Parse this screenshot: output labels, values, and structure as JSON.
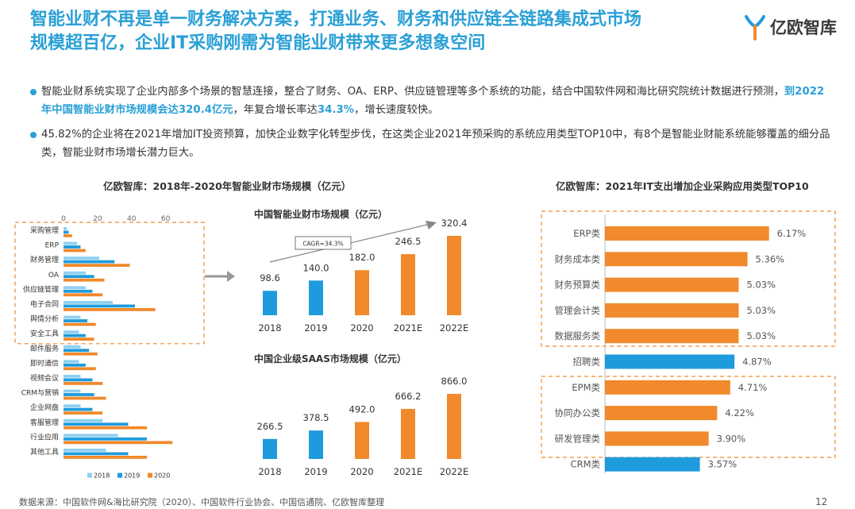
{
  "title": {
    "line1": "智能业财不再是单一财务解决方案，打通业务、财务和供应链全链路集成式市场",
    "line2": "规模超百亿，企业IT采购刚需为智能业财带来更多想象空间"
  },
  "logo": {
    "text": "亿欧智库"
  },
  "bullets": [
    {
      "text_before": "智能业财系统实现了企业内部多个场景的智慧连接，整合了财务、OA、ERP、供应链管理等多个系统的功能，结合中国软件网和海比研究院统计数据进行预测，",
      "highlight1": "到2022年中国智能业财市场规模会达320.4亿元",
      "text_mid": "，年复合增长率达",
      "highlight2": "34.3%",
      "text_after": "，增长速度较快。"
    },
    {
      "text": "45.82%的企业将在2021年增加IT投资预算，加快企业数字化转型步伐，在这类企业2021年预采购的系统应用类型TOP10中，有8个是智能业财能系统能够覆盖的细分品类，智能业财市场增长潜力巨大。"
    }
  ],
  "section_left_title": "亿欧智库：2018年-2020年智能业财市场规模（亿元）",
  "section_right_title": "亿欧智库：2021年IT支出增加企业采购应用类型TOP10",
  "colors": {
    "c2018": "#8fd0f0",
    "c2019": "#1e9bdc",
    "c2020": "#f08a2c",
    "accent": "#2aa0d6"
  },
  "chart_data": [
    {
      "type": "bar",
      "orientation": "horizontal",
      "categories": [
        "采购管理",
        "ERP",
        "财务管理",
        "OA",
        "供应链管理",
        "电子合同",
        "舆情分析",
        "安全工具",
        "邮件服务",
        "即时通信",
        "视频会议",
        "CRM与营销",
        "企业网盘",
        "客服管理",
        "行业应用",
        "其他工具"
      ],
      "series": [
        {
          "name": "2018",
          "values": [
            2,
            8,
            21,
            13,
            13,
            29,
            10,
            9,
            10,
            9,
            10,
            10,
            10,
            23,
            32,
            25
          ]
        },
        {
          "name": "2019",
          "values": [
            3,
            10,
            30,
            18,
            17,
            42,
            14,
            13,
            15,
            13,
            17,
            18,
            17,
            38,
            49,
            38
          ]
        },
        {
          "name": "2020",
          "values": [
            5,
            13,
            39,
            24,
            23,
            54,
            19,
            18,
            20,
            19,
            23,
            25,
            23,
            49,
            64,
            49
          ]
        }
      ],
      "x_ticks": [
        "0",
        "20",
        "40",
        "60"
      ],
      "xlim": [
        0,
        70
      ]
    },
    {
      "type": "bar",
      "title": "中国智能业财市场规模（亿元）",
      "categories": [
        "2018",
        "2019",
        "2020",
        "2021E",
        "2022E"
      ],
      "values": [
        98.6,
        140.0,
        182.0,
        246.5,
        320.4
      ],
      "labels": [
        "98.6",
        "140.0",
        "182.0",
        "246.5",
        "320.4"
      ],
      "annotation": "CAGR=34.3%"
    },
    {
      "type": "bar",
      "title": "中国企业级SAAS市场规模（亿元）",
      "categories": [
        "2018",
        "2019",
        "2020",
        "2021E",
        "2022E"
      ],
      "values": [
        266.5,
        378.5,
        492.0,
        666.2,
        866.0
      ],
      "labels": [
        "266.5",
        "378.5",
        "492.0",
        "666.2",
        "866.0"
      ]
    },
    {
      "type": "bar",
      "orientation": "horizontal",
      "categories": [
        "ERP类",
        "财务成本类",
        "财务预算类",
        "管理会计类",
        "数据服务类",
        "招聘类",
        "EPM类",
        "协同办公类",
        "研发管理类",
        "CRM类"
      ],
      "values": [
        6.17,
        5.36,
        5.03,
        5.03,
        5.03,
        4.87,
        4.71,
        4.22,
        3.9,
        3.57
      ],
      "labels": [
        "6.17%",
        "5.36%",
        "5.03%",
        "5.03%",
        "5.03%",
        "4.87%",
        "4.71%",
        "4.22%",
        "3.90%",
        "3.57%"
      ],
      "highlight": [
        "orange",
        "orange",
        "orange",
        "orange",
        "orange",
        "blue",
        "orange",
        "orange",
        "orange",
        "blue"
      ]
    }
  ],
  "footer": "数据来源：中国软件网&海比研究院（2020）、中国软件行业协会、中国信通院、亿欧智库整理",
  "page_number": "12"
}
